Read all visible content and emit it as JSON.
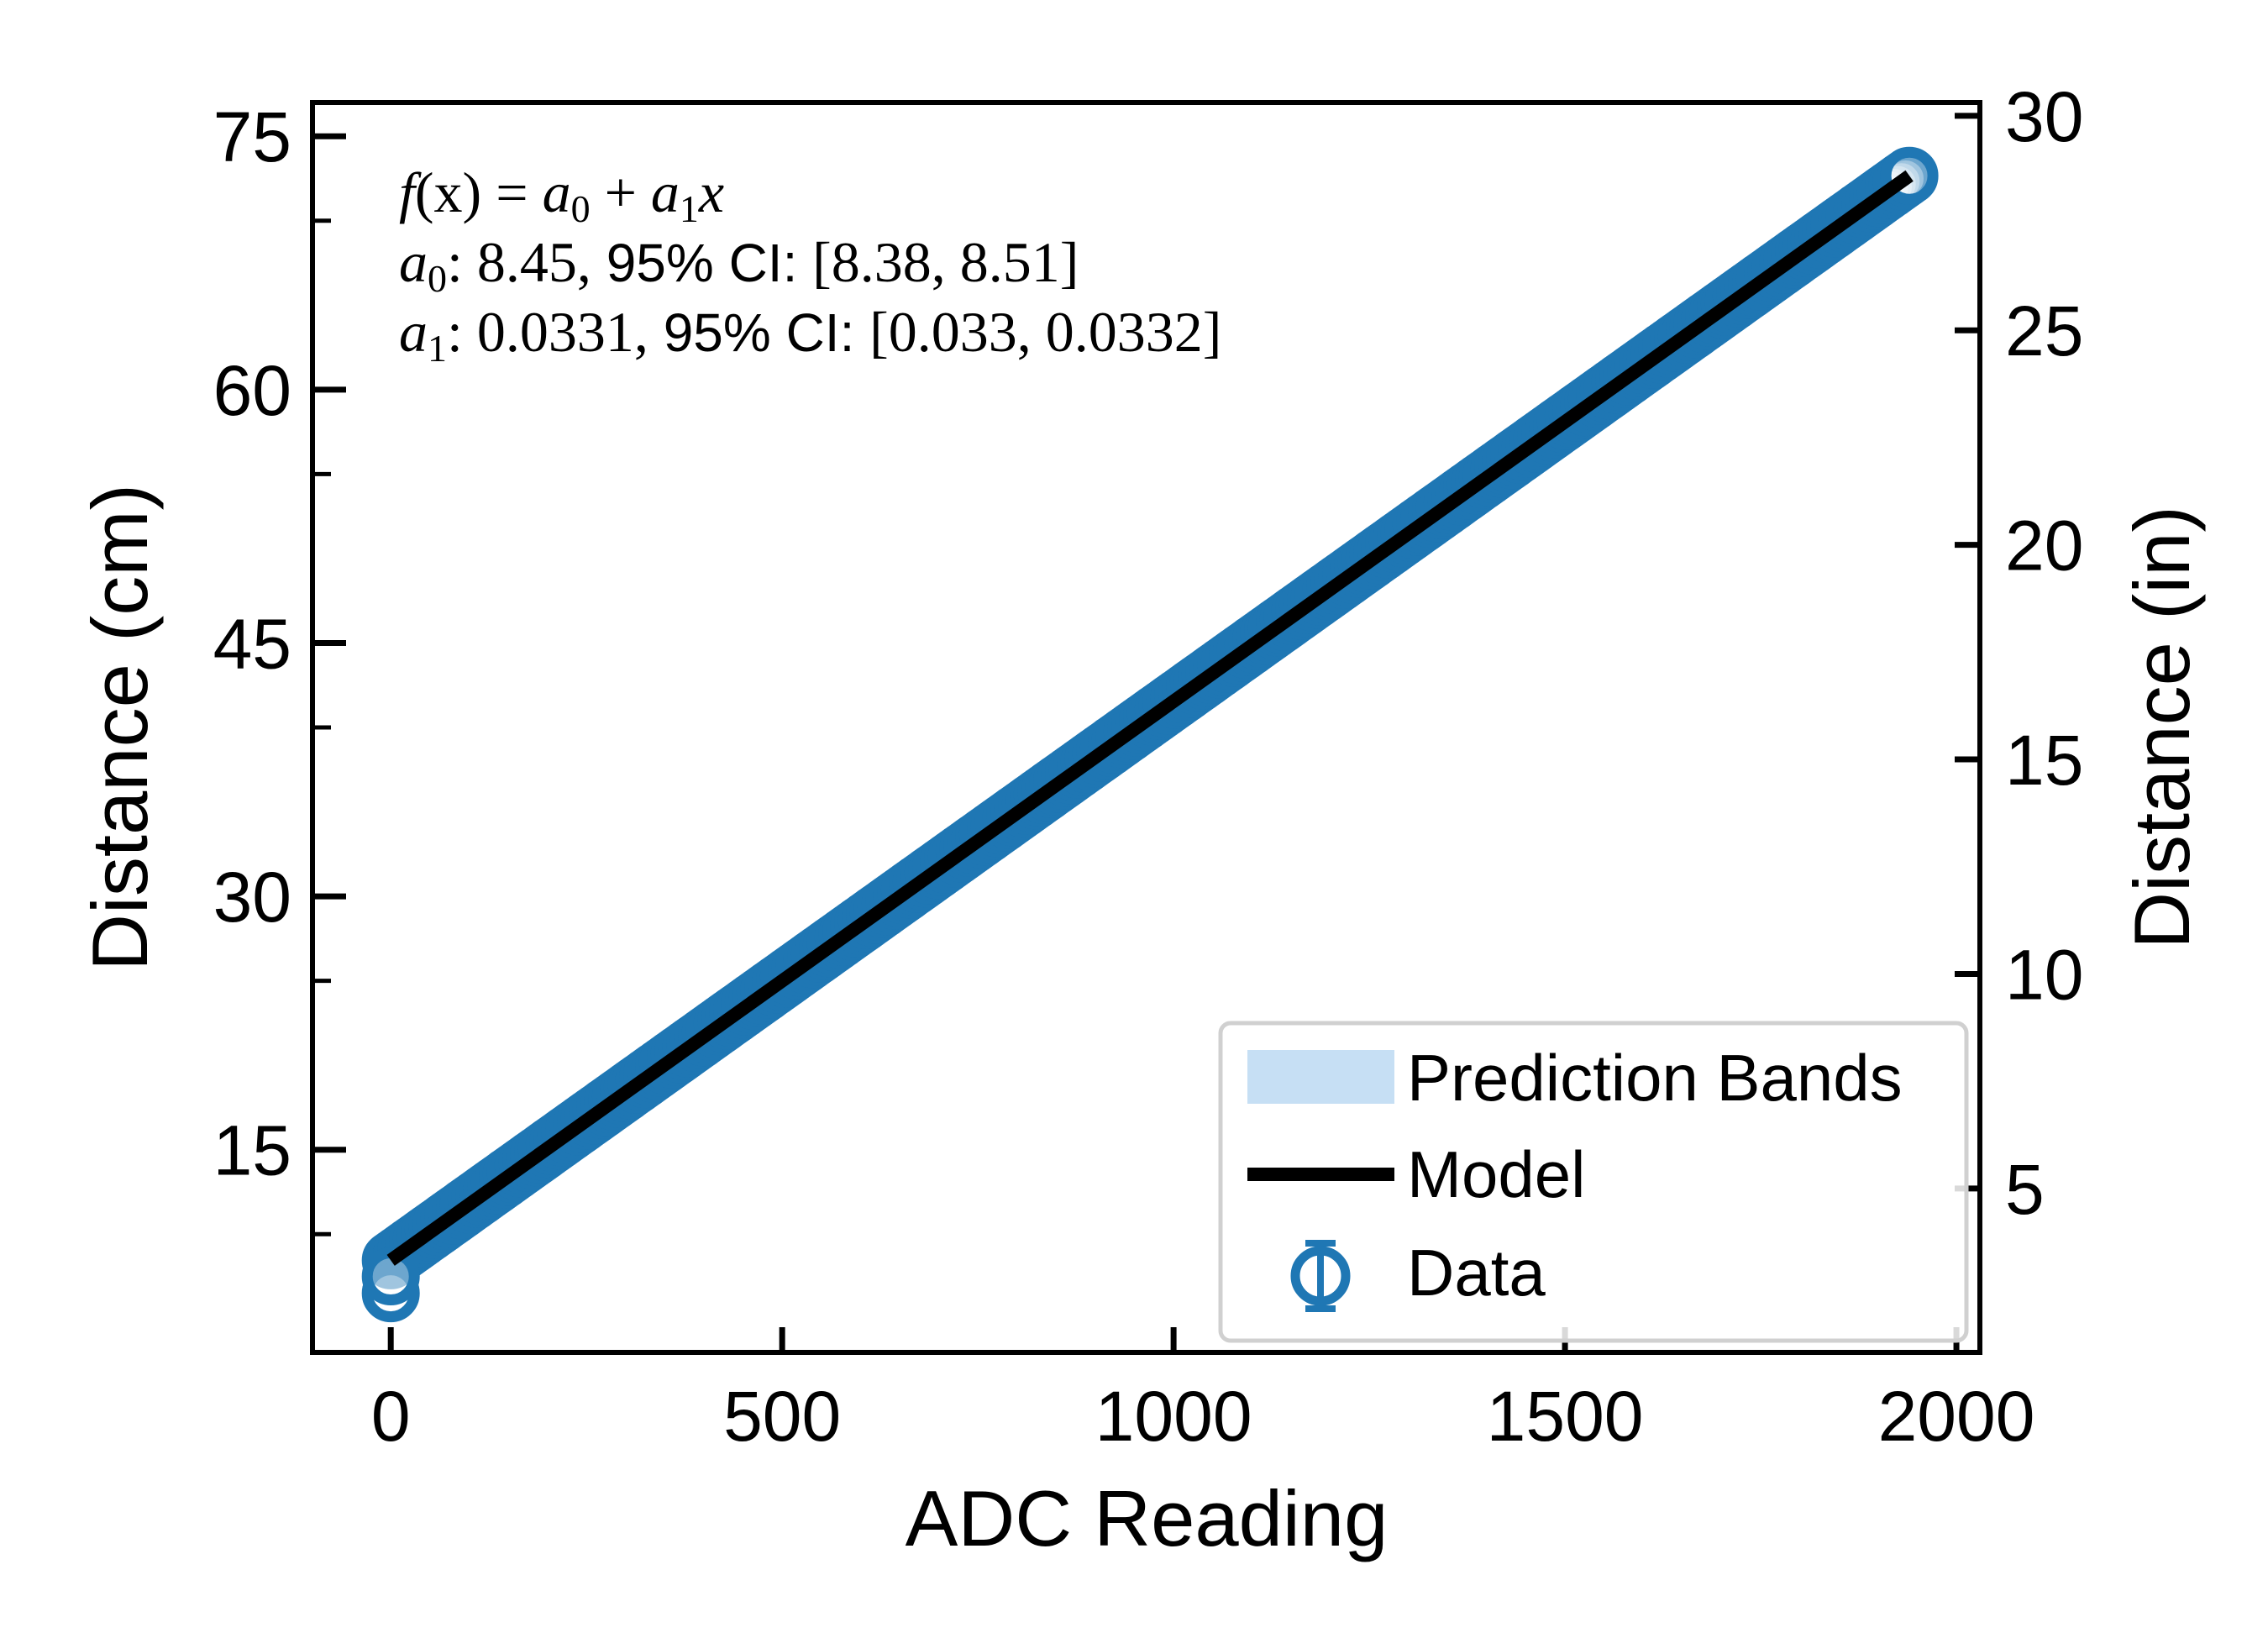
{
  "chart_data": {
    "type": "scatter",
    "xlabel": "ADC Reading",
    "ylabel": "Distance (cm)",
    "ylabel_right": "Distance (in)",
    "xlim": [
      -100,
      2030
    ],
    "ylim": [
      3,
      77
    ],
    "ylim_right_in": [
      1.18,
      30.31
    ],
    "xticks": [
      "0",
      "500",
      "1000",
      "1500",
      "2000"
    ],
    "yticks": [
      "15",
      "30",
      "45",
      "60",
      "75"
    ],
    "yticks_right": [
      "5",
      "10",
      "15",
      "20",
      "25",
      "30"
    ],
    "annotation": {
      "line1_f": "f",
      "line1_x": "(x)",
      "line1_eq": " = ",
      "line1_a0": "a",
      "line1_a0_sub": "0",
      "line1_plus": " + ",
      "line1_a1": "a",
      "line1_a1_sub": "1",
      "line1_xvar": "x",
      "line2_a": "a",
      "line2_sub": "0",
      "line2_value": ": 8.45,",
      "line2_ci_label": " 95% CI: ",
      "line2_ci": "[8.38, 8.51]",
      "line3_a": "a",
      "line3_sub": "1",
      "line3_value": ": 0.0331,",
      "line3_ci_label": " 95% CI: ",
      "line3_ci": "[0.033, 0.0332]"
    },
    "fit": {
      "a0": 8.45,
      "a1": 0.0331
    },
    "series": [
      {
        "name": "Data",
        "kind": "scatter",
        "color": "#1f77b4",
        "x_range": [
          0,
          1940
        ],
        "n_points": 390,
        "extra_points": [
          {
            "x": 0,
            "y": 6.5
          },
          {
            "x": 0,
            "y": 7.5
          }
        ]
      },
      {
        "name": "Model",
        "kind": "line",
        "color": "#000000",
        "x": [
          0,
          1940
        ],
        "y": [
          8.45,
          72.66
        ]
      },
      {
        "name": "Prediction Bands",
        "kind": "band",
        "color": "#c6dff4"
      }
    ],
    "legend": {
      "position": "lower-right",
      "entries": [
        "Prediction Bands",
        "Model",
        "Data"
      ]
    }
  }
}
